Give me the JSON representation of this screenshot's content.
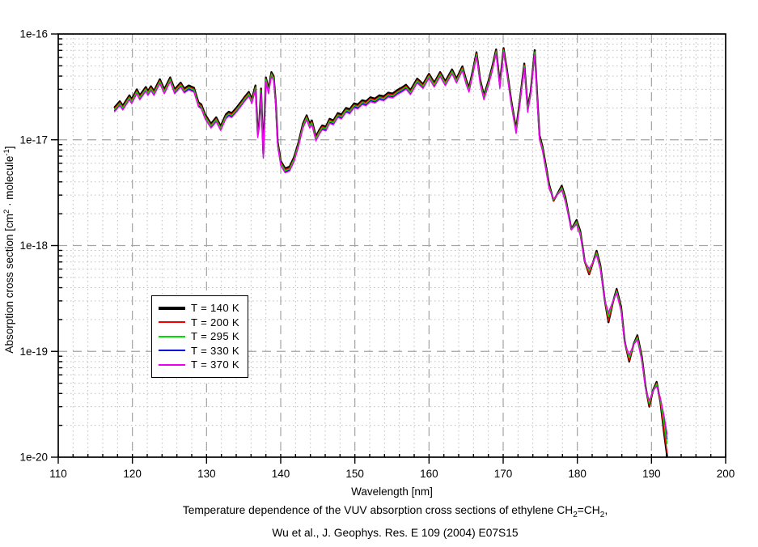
{
  "chart_data": {
    "type": "line",
    "title": "",
    "xlabel": "Wavelength [nm]",
    "ylabel_parts": {
      "a": "Absorption cross section [cm",
      "sup1": "2",
      "b": " · molecule",
      "sup2": "-1",
      "c": "]"
    },
    "xlim": [
      110,
      200
    ],
    "ylog_lim": [
      -20,
      -16
    ],
    "x_ticks": [
      110,
      120,
      130,
      140,
      150,
      160,
      170,
      180,
      190,
      200
    ],
    "x_minor_step": 2,
    "y_tick_labels": [
      "1e-16",
      "1e-17",
      "1e-18",
      "1e-19",
      "1e-20"
    ],
    "y_tick_exponents": [
      -16,
      -17,
      -18,
      -19,
      -20
    ],
    "grid": true,
    "legend_position": "inside-left",
    "series": [
      {
        "name": "T = 140 K",
        "color": "#000000",
        "line_width": 2.3,
        "base_offset": 0.022,
        "dip_spread": -0.18
      },
      {
        "name": "T = 200 K",
        "color": "#ee0000",
        "line_width": 1.4,
        "base_offset": 0.01,
        "dip_spread": -0.09
      },
      {
        "name": "T = 295 K",
        "color": "#00dd00",
        "line_width": 1.4,
        "base_offset": 0.0,
        "dip_spread": 0.1
      },
      {
        "name": "T = 330 K",
        "color": "#0000dd",
        "line_width": 1.4,
        "base_offset": -0.009,
        "dip_spread": 0.2
      },
      {
        "name": "T = 370 K",
        "color": "#ee00ee",
        "line_width": 1.4,
        "base_offset": -0.02,
        "dip_spread": 0.32
      }
    ],
    "base_curve": [
      [
        117.6,
        1.93e-17
      ],
      [
        118.3,
        2.2e-17
      ],
      [
        118.7,
        2e-17
      ],
      [
        119.6,
        2.5e-17
      ],
      [
        119.9,
        2.3e-17
      ],
      [
        120.6,
        2.85e-17
      ],
      [
        121.0,
        2.5e-17
      ],
      [
        121.8,
        3e-17
      ],
      [
        122.1,
        2.75e-17
      ],
      [
        122.5,
        3.05e-17
      ],
      [
        122.9,
        2.75e-17
      ],
      [
        123.7,
        3.55e-17
      ],
      [
        124.3,
        2.85e-17
      ],
      [
        125.1,
        3.7e-17
      ],
      [
        125.7,
        2.85e-17
      ],
      [
        126.5,
        3.3e-17
      ],
      [
        127.0,
        2.9e-17
      ],
      [
        127.6,
        3.1e-17
      ],
      [
        128.3,
        2.95e-17
      ],
      [
        128.9,
        2.15e-17
      ],
      [
        129.3,
        2.05e-17
      ],
      [
        129.8,
        1.65e-17
      ],
      [
        130.6,
        1.35e-17
      ],
      [
        131.3,
        1.55e-17
      ],
      [
        131.9,
        1.28e-17
      ],
      [
        132.6,
        1.65e-17
      ],
      [
        133.0,
        1.75e-17
      ],
      [
        133.4,
        1.7e-17
      ],
      [
        134.0,
        1.9e-17
      ],
      [
        134.6,
        2.15e-17
      ],
      [
        135.1,
        2.4e-17
      ],
      [
        135.7,
        2.7e-17
      ],
      [
        136.1,
        2.3e-17
      ],
      [
        136.6,
        3.1e-17
      ],
      [
        136.9,
        1.1e-17
      ],
      [
        137.1,
        1.35e-17
      ],
      [
        137.35,
        2.9e-17
      ],
      [
        137.65,
        7e-18
      ],
      [
        138.0,
        3.7e-17
      ],
      [
        138.35,
        2.85e-17
      ],
      [
        138.75,
        4.15e-17
      ],
      [
        139.05,
        3.8e-17
      ],
      [
        139.35,
        2.1e-17
      ],
      [
        139.6,
        9e-18
      ],
      [
        140.0,
        6e-18
      ],
      [
        140.6,
        5.1e-18
      ],
      [
        141.2,
        5.3e-18
      ],
      [
        141.8,
        6.5e-18
      ],
      [
        142.4,
        9e-18
      ],
      [
        143.0,
        1.35e-17
      ],
      [
        143.5,
        1.62e-17
      ],
      [
        143.9,
        1.35e-17
      ],
      [
        144.2,
        1.45e-17
      ],
      [
        144.75,
        1.02e-17
      ],
      [
        145.2,
        1.18e-17
      ],
      [
        145.6,
        1.3e-17
      ],
      [
        146.1,
        1.27e-17
      ],
      [
        146.6,
        1.5e-17
      ],
      [
        147.1,
        1.45e-17
      ],
      [
        147.7,
        1.7e-17
      ],
      [
        148.2,
        1.65e-17
      ],
      [
        148.8,
        1.9e-17
      ],
      [
        149.3,
        1.85e-17
      ],
      [
        149.9,
        2.1e-17
      ],
      [
        150.4,
        2.05e-17
      ],
      [
        151.0,
        2.25e-17
      ],
      [
        151.5,
        2.2e-17
      ],
      [
        152.1,
        2.4e-17
      ],
      [
        152.7,
        2.33e-17
      ],
      [
        153.3,
        2.5e-17
      ],
      [
        153.9,
        2.45e-17
      ],
      [
        154.5,
        2.65e-17
      ],
      [
        155.1,
        2.6e-17
      ],
      [
        155.7,
        2.8e-17
      ],
      [
        156.3,
        2.95e-17
      ],
      [
        156.9,
        3.15e-17
      ],
      [
        157.5,
        2.8e-17
      ],
      [
        158.4,
        3.6e-17
      ],
      [
        159.2,
        3.2e-17
      ],
      [
        160.0,
        4e-17
      ],
      [
        160.7,
        3.3e-17
      ],
      [
        161.5,
        4.15e-17
      ],
      [
        162.2,
        3.4e-17
      ],
      [
        163.1,
        4.4e-17
      ],
      [
        163.7,
        3.6e-17
      ],
      [
        164.5,
        4.7e-17
      ],
      [
        165.0,
        3.5e-17
      ],
      [
        165.4,
        2.95e-17
      ],
      [
        166.0,
        4.6e-17
      ],
      [
        166.4,
        6.4e-17
      ],
      [
        166.9,
        3.5e-17
      ],
      [
        167.4,
        2.5e-17
      ],
      [
        168.0,
        3.4e-17
      ],
      [
        168.5,
        4.6e-17
      ],
      [
        169.05,
        6.8e-17
      ],
      [
        169.55,
        3.2e-17
      ],
      [
        170.05,
        7e-17
      ],
      [
        170.5,
        4.4e-17
      ],
      [
        171.1,
        2.2e-17
      ],
      [
        171.75,
        1.2e-17
      ],
      [
        172.3,
        2.4e-17
      ],
      [
        172.85,
        5e-17
      ],
      [
        173.3,
        1.9e-17
      ],
      [
        173.7,
        2.7e-17
      ],
      [
        174.25,
        6.7e-17
      ],
      [
        174.6,
        2.4e-17
      ],
      [
        174.9,
        1.05e-17
      ],
      [
        175.3,
        8.2e-18
      ],
      [
        175.8,
        5.2e-18
      ],
      [
        176.2,
        3.6e-18
      ],
      [
        176.8,
        2.65e-18
      ],
      [
        177.3,
        3e-18
      ],
      [
        177.9,
        3.5e-18
      ],
      [
        178.4,
        2.7e-18
      ],
      [
        179.2,
        1.4e-18
      ],
      [
        179.9,
        1.66e-18
      ],
      [
        180.4,
        1.3e-18
      ],
      [
        181.0,
        7e-19
      ],
      [
        181.6,
        5.5e-19
      ],
      [
        182.1,
        6.8e-19
      ],
      [
        182.6,
        8.5e-19
      ],
      [
        183.1,
        6.2e-19
      ],
      [
        183.7,
        3e-19
      ],
      [
        184.2,
        2e-19
      ],
      [
        184.8,
        2.9e-19
      ],
      [
        185.3,
        3.7e-19
      ],
      [
        185.9,
        2.5e-19
      ],
      [
        186.4,
        1.2e-19
      ],
      [
        187.0,
        8.3e-20
      ],
      [
        187.6,
        1.15e-19
      ],
      [
        188.1,
        1.35e-19
      ],
      [
        188.7,
        8.5e-20
      ],
      [
        189.2,
        4.5e-20
      ],
      [
        189.7,
        3.1e-20
      ],
      [
        190.2,
        4.2e-20
      ],
      [
        190.7,
        4.9e-20
      ],
      [
        191.2,
        3.4e-20
      ],
      [
        191.7,
        1.9e-20
      ],
      [
        192.1,
        1.2e-20
      ]
    ]
  },
  "caption": {
    "l1a": "Temperature dependence of the VUV absorption cross sections of ethylene CH",
    "l1b": "2",
    "l1c": "=CH",
    "l1d": "2",
    "l1e": ",",
    "line2": "Wu et al., J. Geophys. Res. E 109 (2004) E07S15"
  }
}
